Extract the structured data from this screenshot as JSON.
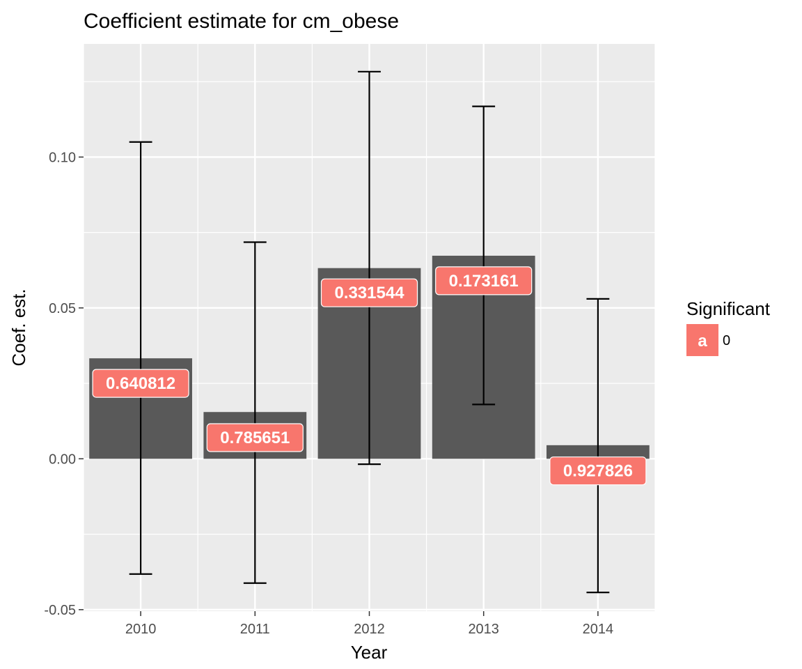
{
  "chart_data": {
    "type": "bar",
    "title": "Coefficient estimate for cm_obese",
    "xlabel": "Year",
    "ylabel": "Coef. est.",
    "categories": [
      "2010",
      "2011",
      "2012",
      "2013",
      "2014"
    ],
    "values": [
      0.0333,
      0.0155,
      0.0632,
      0.0673,
      0.0045
    ],
    "error_low": [
      -0.0382,
      -0.0412,
      -0.0018,
      0.018,
      -0.0443
    ],
    "error_high": [
      0.105,
      0.0718,
      0.1283,
      0.1168,
      0.053
    ],
    "labels": [
      "0.640812",
      "0.785651",
      "0.331544",
      "0.173161",
      "0.927826"
    ],
    "label_y": [
      0.025,
      0.007,
      0.055,
      0.059,
      -0.004
    ],
    "ylim": [
      -0.0505,
      0.1375
    ],
    "yticks": [
      "-0.05",
      "0.00",
      "0.05",
      "0.10"
    ],
    "ytick_values": [
      -0.05,
      0.0,
      0.05,
      0.1
    ],
    "grid": true,
    "legend": {
      "title": "Significant",
      "key_glyph": "a",
      "entries": [
        "0"
      ],
      "position": "right"
    },
    "colors": {
      "panel": "#ebebeb",
      "grid": "#ffffff",
      "bar": "#595959",
      "label_fill": "#f8766d",
      "errorbar": "#000000"
    }
  }
}
